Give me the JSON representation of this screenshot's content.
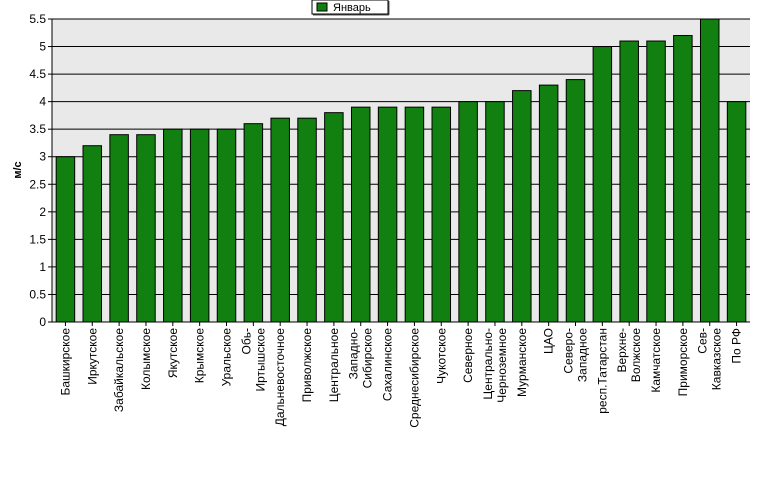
{
  "chart_data": {
    "type": "bar",
    "title": "",
    "xlabel": "",
    "ylabel": "м/с",
    "ylim": [
      0,
      5.5
    ],
    "yticks": [
      "0",
      "0.5",
      "1",
      "1.5",
      "2",
      "2.5",
      "3",
      "3.5",
      "4",
      "4.5",
      "5",
      "5.5"
    ],
    "grid": "horizontal",
    "legend_position": "top-center",
    "series": [
      {
        "name": "Январь",
        "color": "#118011",
        "values": [
          3.0,
          3.2,
          3.4,
          3.4,
          3.5,
          3.5,
          3.5,
          3.6,
          3.7,
          3.7,
          3.8,
          3.9,
          3.9,
          3.9,
          3.9,
          4.0,
          4.0,
          4.2,
          4.3,
          4.4,
          5.0,
          5.1,
          5.1,
          5.2,
          5.5,
          4.0
        ]
      }
    ],
    "categories": [
      [
        "Башкирское"
      ],
      [
        "Иркутское"
      ],
      [
        "Забайкальское"
      ],
      [
        "Колымское"
      ],
      [
        "Якутское"
      ],
      [
        "Крымское"
      ],
      [
        "Уральское"
      ],
      [
        "Обь-",
        "Иртышское"
      ],
      [
        "Дальневосточное"
      ],
      [
        "Приволжское"
      ],
      [
        "Центральное"
      ],
      [
        "Западно-",
        "Сибирское"
      ],
      [
        "Сахалинское"
      ],
      [
        "Среднесибирское"
      ],
      [
        "Чукотское"
      ],
      [
        "Северное"
      ],
      [
        "Центрально-",
        "Черноземное"
      ],
      [
        "Мурманское"
      ],
      [
        "ЦАО"
      ],
      [
        "Северо-",
        "Западное"
      ],
      [
        "респ.Татарстан"
      ],
      [
        "Верхне-",
        "Волжское"
      ],
      [
        "Камчатское"
      ],
      [
        "Приморское"
      ],
      [
        "Сев-",
        "Кавказское"
      ],
      [
        "По РФ"
      ]
    ]
  }
}
